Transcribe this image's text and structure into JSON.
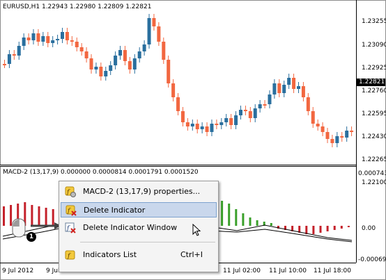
{
  "main_chart": {
    "header": "EURUSD,H1  1.22943 1.22980 1.22809 1.22821",
    "price_labels": [
      "1.23255",
      "1.23090",
      "1.22925",
      "1.22760",
      "1.22595",
      "1.22430",
      "1.22265",
      "1.22100"
    ],
    "current_price": "1.22821"
  },
  "indicator": {
    "header": "MACD-2 (13,17,9) 0.000000 0.0000814 0.0001791 0.0001520",
    "axis_labels": [
      "0.000743",
      "0.00",
      "-0.000695"
    ]
  },
  "time_axis": [
    "9 Jul 2012",
    "9 Jul 18:00",
    "11 Jul 02:00",
    "11 Jul 10:00",
    "11 Jul 18:00"
  ],
  "context_menu": {
    "items": [
      {
        "label": "MACD-2 (13,17,9) properties...",
        "shortcut": "",
        "icon": "indicator-properties-icon"
      },
      {
        "label": "Delete Indicator",
        "shortcut": "",
        "icon": "delete-indicator-icon"
      },
      {
        "label": "Delete Indicator Window",
        "shortcut": "",
        "icon": "delete-window-icon"
      },
      {
        "label": "Indicators List",
        "shortcut": "Ctrl+I",
        "icon": "indicators-list-icon"
      }
    ]
  },
  "annotations": {
    "step1": "1",
    "step2": "2"
  },
  "colors": {
    "bull": "#2a6f9e",
    "bear": "#f26740",
    "macd_pos": "#3aa02a",
    "macd_neg": "#c4202a"
  }
}
